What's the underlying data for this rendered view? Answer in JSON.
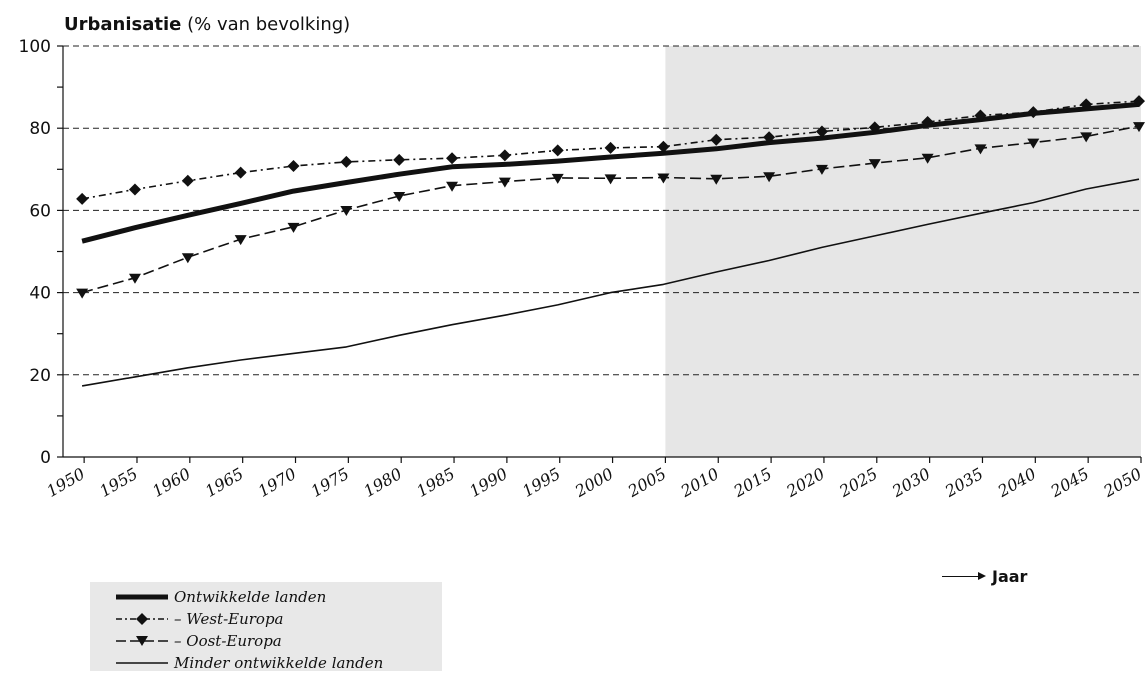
{
  "title": {
    "bold": "Urbanisatie",
    "rest": "(% van bevolking)"
  },
  "x_axis_label": "Jaar",
  "chart_data": {
    "type": "line",
    "title": "Urbanisatie (% van bevolking)",
    "xlabel": "Jaar",
    "ylabel": "",
    "ylim": [
      0,
      100
    ],
    "yticks": [
      0,
      20,
      40,
      60,
      80,
      100
    ],
    "xlim": [
      1948,
      2050
    ],
    "xticks": [
      1950,
      1955,
      1960,
      1965,
      1970,
      1975,
      1980,
      1985,
      1990,
      1995,
      2000,
      2005,
      2010,
      2015,
      2020,
      2025,
      2030,
      2035,
      2040,
      2045,
      2050
    ],
    "projection_start": 2005,
    "grid": "horizontal dashed",
    "legend_position": "bottom-left",
    "series": [
      {
        "name": "Ontwikkelde landen",
        "style": "thick solid",
        "x": [
          1950,
          1955,
          1960,
          1965,
          1970,
          1975,
          1980,
          1985,
          1990,
          1995,
          2000,
          2005,
          2010,
          2015,
          2020,
          2025,
          2030,
          2035,
          2040,
          2045,
          2050
        ],
        "values": [
          52.5,
          55.8,
          58.8,
          61.7,
          64.7,
          66.8,
          68.8,
          70.6,
          71.2,
          72.0,
          73.0,
          73.9,
          75.0,
          76.5,
          77.6,
          79.0,
          80.7,
          82.1,
          83.6,
          84.7,
          85.8
        ]
      },
      {
        "name": "– West-Europa",
        "style": "dash-dot with diamonds",
        "x": [
          1950,
          1955,
          1960,
          1965,
          1970,
          1975,
          1980,
          1985,
          1990,
          1995,
          2000,
          2005,
          2010,
          2015,
          2020,
          2025,
          2030,
          2035,
          2040,
          2045,
          2050
        ],
        "values": [
          62.8,
          65.1,
          67.2,
          69.2,
          70.8,
          71.8,
          72.3,
          72.7,
          73.4,
          74.6,
          75.2,
          75.5,
          77.2,
          77.8,
          79.2,
          80.2,
          81.5,
          83.1,
          83.9,
          85.8,
          86.6
        ]
      },
      {
        "name": "– Oost-Europa",
        "style": "long dash with triangles",
        "x": [
          1950,
          1955,
          1960,
          1965,
          1970,
          1975,
          1980,
          1985,
          1990,
          1995,
          2000,
          2005,
          2010,
          2015,
          2020,
          2025,
          2030,
          2035,
          2040,
          2045,
          2050
        ],
        "values": [
          40.0,
          43.6,
          48.6,
          53.0,
          56.0,
          60.1,
          63.5,
          66.0,
          67.0,
          67.9,
          67.8,
          68.0,
          67.7,
          68.3,
          70.1,
          71.5,
          72.8,
          75.1,
          76.5,
          78.0,
          80.5
        ]
      },
      {
        "name": "Minder ontwikkelde landen",
        "style": "thin solid",
        "x": [
          1950,
          1955,
          1960,
          1965,
          1970,
          1975,
          1980,
          1985,
          1990,
          1995,
          2000,
          2005,
          2010,
          2015,
          2020,
          2025,
          2030,
          2035,
          2040,
          2045,
          2050
        ],
        "values": [
          17.3,
          19.5,
          21.7,
          23.6,
          25.2,
          26.8,
          29.6,
          32.2,
          34.5,
          37.0,
          40.0,
          42.0,
          45.0,
          47.8,
          51.0,
          53.8,
          56.6,
          59.3,
          61.9,
          65.2,
          67.6
        ]
      }
    ]
  },
  "legend": {
    "items": [
      {
        "label": "Ontwikkelde landen"
      },
      {
        "label": "– West-Europa"
      },
      {
        "label": "– Oost-Europa"
      },
      {
        "label": "Minder ontwikkelde landen"
      }
    ]
  },
  "colors": {
    "projection_shade": "#e6e6e6",
    "line": "#111111",
    "legend_bg": "#e8e8e8"
  }
}
